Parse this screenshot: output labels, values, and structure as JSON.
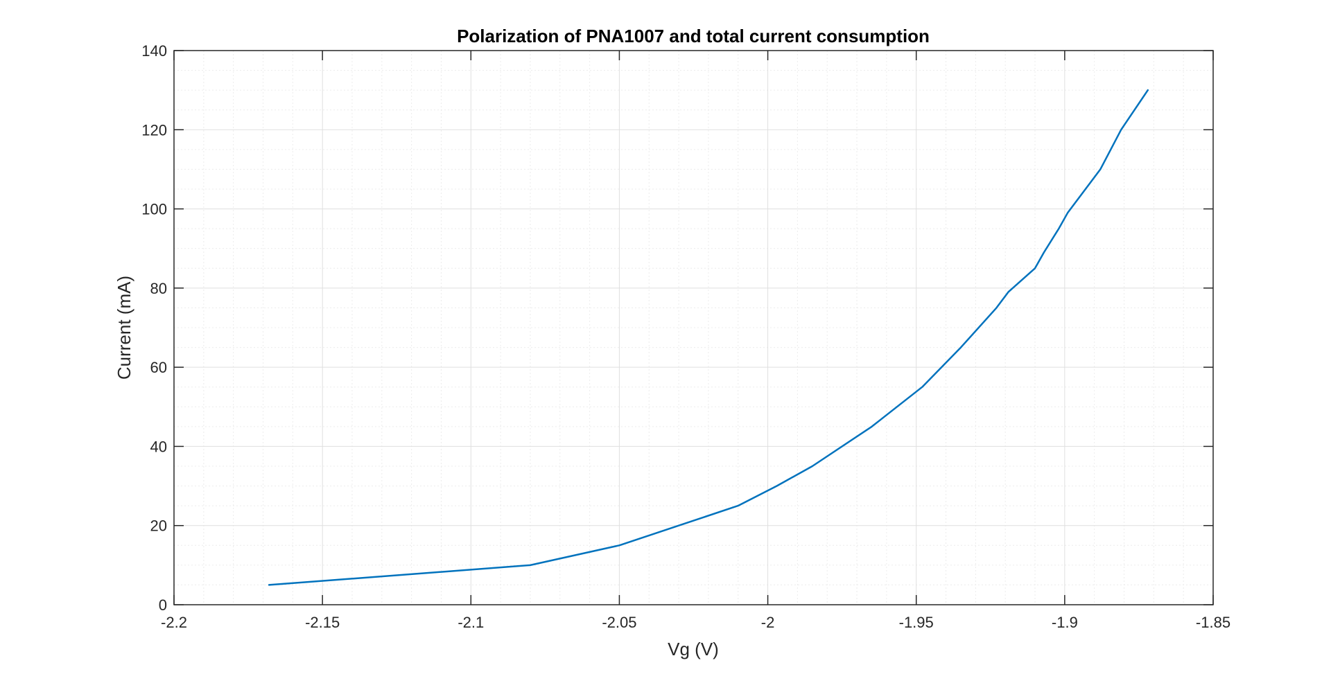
{
  "colors": {
    "background": "#ffffff",
    "series_line": "#0072BD",
    "axes_line": "#262626",
    "major_grid": "#dfdfdf",
    "minor_grid": "#ececec"
  },
  "chart_data": {
    "type": "line",
    "title": "Polarization of PNA1007 and total current consumption",
    "xlabel": "Vg (V)",
    "ylabel": "Current (mA)",
    "xlim": [
      -2.2,
      -1.85
    ],
    "ylim": [
      0,
      140
    ],
    "grid": "major and minor",
    "legend": "none",
    "x_ticks": [
      {
        "value": -2.2,
        "label": "-2.2"
      },
      {
        "value": -2.15,
        "label": "-2.15"
      },
      {
        "value": -2.1,
        "label": "-2.1"
      },
      {
        "value": -2.05,
        "label": "-2.05"
      },
      {
        "value": -2.0,
        "label": "-2"
      },
      {
        "value": -1.95,
        "label": "-1.95"
      },
      {
        "value": -1.9,
        "label": "-1.9"
      },
      {
        "value": -1.85,
        "label": "-1.85"
      }
    ],
    "y_ticks": [
      {
        "value": 0,
        "label": "0"
      },
      {
        "value": 20,
        "label": "20"
      },
      {
        "value": 40,
        "label": "40"
      },
      {
        "value": 60,
        "label": "60"
      },
      {
        "value": 80,
        "label": "80"
      },
      {
        "value": 100,
        "label": "100"
      },
      {
        "value": 120,
        "label": "120"
      },
      {
        "value": 140,
        "label": "140"
      }
    ],
    "series": [
      {
        "x": [
          -2.168,
          -2.08,
          -2.05,
          -2.03,
          -2.01,
          -1.997,
          -1.985,
          -1.965,
          -1.948,
          -1.935,
          -1.923,
          -1.919,
          -1.91,
          -1.907,
          -1.902,
          -1.899,
          -1.888,
          -1.881,
          -1.872
        ],
        "y": [
          5,
          10,
          15,
          20,
          25,
          30,
          35,
          45,
          55,
          65,
          75,
          79,
          85,
          89,
          95,
          99,
          110,
          120,
          130
        ]
      }
    ]
  }
}
